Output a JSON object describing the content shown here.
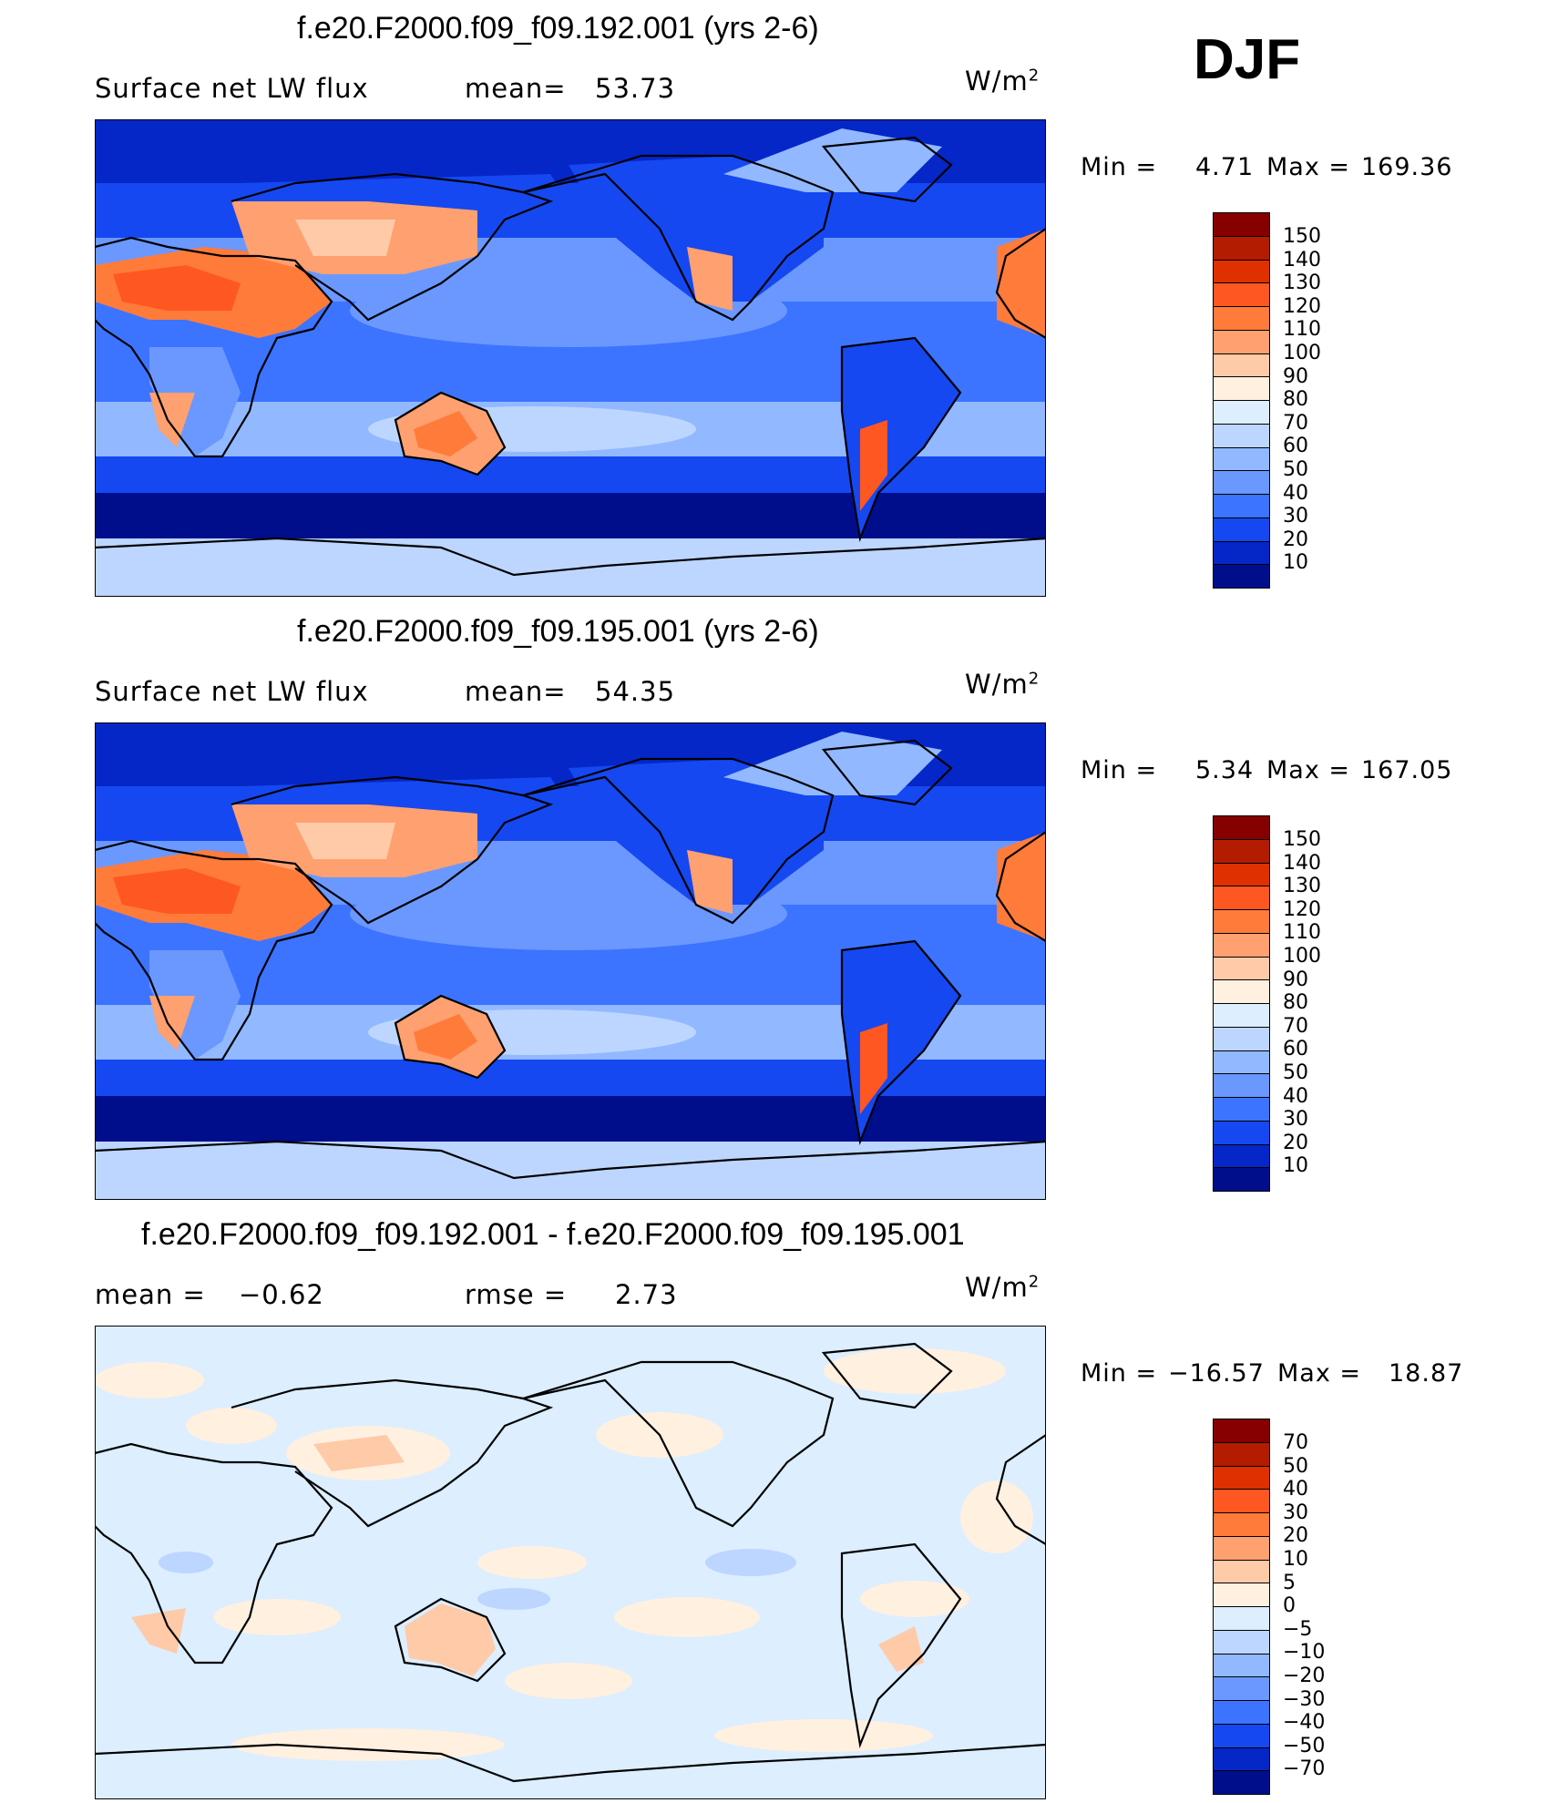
{
  "season": "DJF",
  "variable": "Surface net LW flux",
  "units_base": "W/m",
  "units_exp": "2",
  "panels": [
    {
      "title": "f.e20.F2000.f09_f09.192.001 (yrs 2-6)",
      "stat_label": "mean=",
      "stat_value": "53.73",
      "min_label": "Min  =",
      "min_value": "4.71",
      "max_label": "Max  =",
      "max_value": "169.36"
    },
    {
      "title": "f.e20.F2000.f09_f09.195.001 (yrs 2-6)",
      "stat_label": "mean=",
      "stat_value": "54.35",
      "min_label": "Min  =",
      "min_value": "5.34",
      "max_label": "Max  =",
      "max_value": "167.05"
    },
    {
      "title": "f.e20.F2000.f09_f09.192.001 - f.e20.F2000.f09_f09.195.001",
      "mean_label": "mean  =",
      "mean_value": "−0.62",
      "rmse_label": "rmse  =",
      "rmse_value": "2.73",
      "min_label": "Min  =",
      "min_value": "−16.57",
      "max_label": "Max  =",
      "max_value": "18.87"
    }
  ],
  "colorbar_abs": {
    "levels": [
      "150",
      "140",
      "130",
      "120",
      "110",
      "100",
      "90",
      "80",
      "70",
      "60",
      "50",
      "40",
      "30",
      "20",
      "10"
    ],
    "colors": [
      "#870000",
      "#b31c00",
      "#de3000",
      "#ff5722",
      "#ff7b3a",
      "#ffa070",
      "#ffcaa8",
      "#fff0e0",
      "#dceeff",
      "#bcd6ff",
      "#92b8ff",
      "#6a98ff",
      "#3c74ff",
      "#1548f0",
      "#0527c8",
      "#000e8c"
    ]
  },
  "colorbar_diff": {
    "levels": [
      "70",
      "50",
      "40",
      "30",
      "20",
      "10",
      "5",
      "0",
      "−5",
      "−10",
      "−20",
      "−30",
      "−40",
      "−50",
      "−70"
    ],
    "colors": [
      "#870000",
      "#b31c00",
      "#de3000",
      "#ff5722",
      "#ff7b3a",
      "#ffa070",
      "#ffcaa8",
      "#fff0e0",
      "#dceeff",
      "#bcd6ff",
      "#92b8ff",
      "#6a98ff",
      "#3c74ff",
      "#1548f0",
      "#0527c8",
      "#000e8c"
    ]
  }
}
